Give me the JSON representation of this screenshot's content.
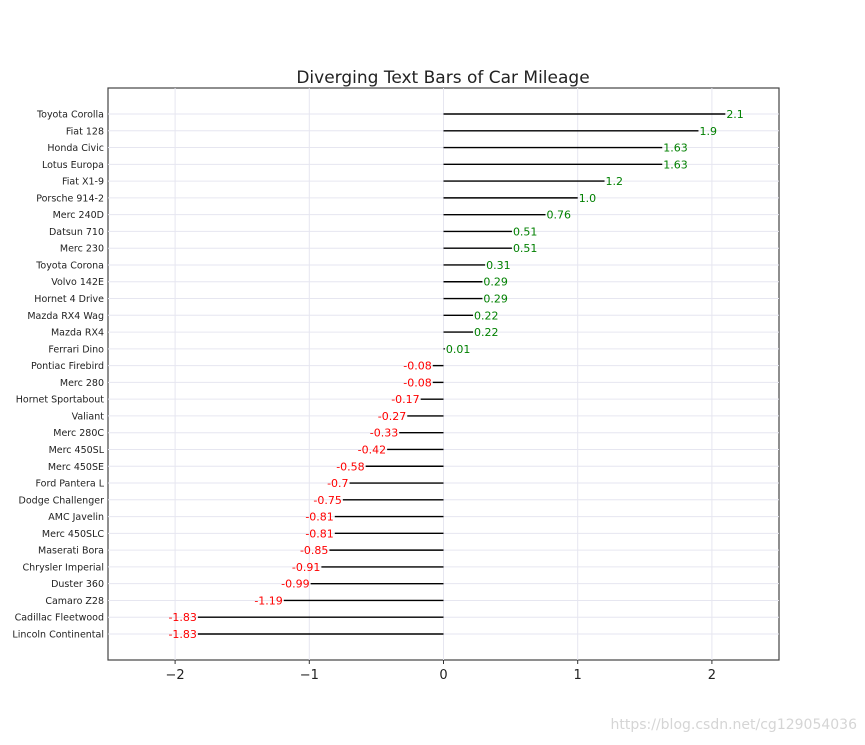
{
  "chart_data": {
    "type": "bar",
    "orientation": "horizontal",
    "title": "Diverging Text Bars of Car Mileage",
    "xlabel": "",
    "ylabel": "",
    "xlim": [
      -2.5,
      2.5
    ],
    "x_ticks": [
      -2,
      -1,
      0,
      1,
      2
    ],
    "x_tick_labels": [
      "−2",
      "−1",
      "0",
      "1",
      "2"
    ],
    "grid": true,
    "legend": "none",
    "categories": [
      "Lincoln Continental",
      "Cadillac Fleetwood",
      "Camaro Z28",
      "Duster 360",
      "Chrysler Imperial",
      "Maserati Bora",
      "Merc 450SLC",
      "AMC Javelin",
      "Dodge Challenger",
      "Ford Pantera L",
      "Merc 450SE",
      "Merc 450SL",
      "Merc 280C",
      "Valiant",
      "Hornet Sportabout",
      "Merc 280",
      "Pontiac Firebird",
      "Ferrari Dino",
      "Mazda RX4",
      "Mazda RX4 Wag",
      "Hornet 4 Drive",
      "Volvo 142E",
      "Toyota Corona",
      "Merc 230",
      "Datsun 710",
      "Merc 240D",
      "Porsche 914-2",
      "Fiat X1-9",
      "Lotus Europa",
      "Honda Civic",
      "Fiat 128",
      "Toyota Corolla"
    ],
    "values": [
      -1.83,
      -1.83,
      -1.19,
      -0.99,
      -0.91,
      -0.85,
      -0.81,
      -0.81,
      -0.75,
      -0.7,
      -0.58,
      -0.42,
      -0.33,
      -0.27,
      -0.17,
      -0.08,
      -0.08,
      0.01,
      0.22,
      0.22,
      0.29,
      0.29,
      0.31,
      0.51,
      0.51,
      0.76,
      1.0,
      1.2,
      1.63,
      1.63,
      1.9,
      2.1
    ],
    "value_labels": [
      "-1.83",
      "-1.83",
      "-1.19",
      "-0.99",
      "-0.91",
      "-0.85",
      "-0.81",
      "-0.81",
      "-0.75",
      "-0.7",
      "-0.58",
      "-0.42",
      "-0.33",
      "-0.27",
      "-0.17",
      "-0.08",
      "-0.08",
      "0.01",
      "0.22",
      "0.22",
      "0.29",
      "0.29",
      "0.31",
      "0.51",
      "0.51",
      "0.76",
      "1.0",
      "1.2",
      "1.63",
      "1.63",
      "1.9",
      "2.1"
    ],
    "colors": {
      "positive": "#008000",
      "negative": "#ff0000",
      "bar": "#000000",
      "grid": "#e6e6f0",
      "axis": "#333333"
    }
  },
  "watermark": "https://blog.csdn.net/cg129054036"
}
